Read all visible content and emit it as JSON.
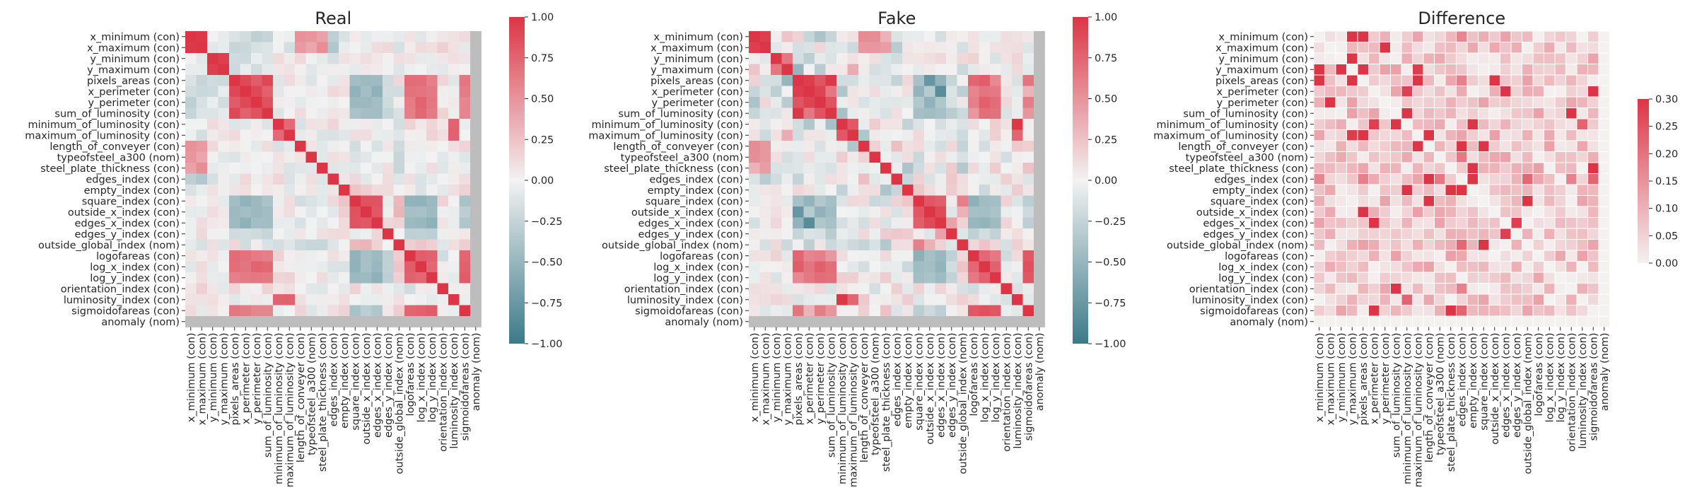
{
  "chart_data": [
    {
      "type": "heatmap",
      "title": "Real",
      "labels": [
        "x_minimum (con)",
        "x_maximum (con)",
        "y_minimum (con)",
        "y_maximum (con)",
        "pixels_areas (con)",
        "x_perimeter (con)",
        "y_perimeter (con)",
        "sum_of_luminosity (con)",
        "minimum_of_luminosity (con)",
        "maximum_of_luminosity (con)",
        "length_of_conveyer (con)",
        "typeofsteel_a300 (nom)",
        "steel_plate_thickness (con)",
        "edges_index (con)",
        "empty_index (con)",
        "square_index (con)",
        "outside_x_index (con)",
        "edges_x_index (con)",
        "edges_y_index (con)",
        "outside_global_index (nom)",
        "logofareas (con)",
        "log_x_index (con)",
        "log_y_index (con)",
        "orientation_index (con)",
        "luminosity_index (con)",
        "sigmoidofareas (con)",
        "anomaly (nom)"
      ],
      "colorbar": {
        "min": -1.0,
        "max": 1.0,
        "ticks": [
          "1.00",
          "0.75",
          "0.50",
          "0.25",
          "0.00",
          "−0.25",
          "−0.50",
          "−0.75",
          "−1.00"
        ]
      },
      "nan_label": "anomaly (nom)"
    },
    {
      "type": "heatmap",
      "title": "Fake",
      "labels": [
        "x_minimum (con)",
        "x_maximum (con)",
        "y_minimum (con)",
        "y_maximum (con)",
        "pixels_areas (con)",
        "x_perimeter (con)",
        "y_perimeter (con)",
        "sum_of_luminosity (con)",
        "minimum_of_luminosity (con)",
        "maximum_of_luminosity (con)",
        "length_of_conveyer (con)",
        "typeofsteel_a300 (nom)",
        "steel_plate_thickness (con)",
        "edges_index (con)",
        "empty_index (con)",
        "square_index (con)",
        "outside_x_index (con)",
        "edges_x_index (con)",
        "edges_y_index (con)",
        "outside_global_index (nom)",
        "logofareas (con)",
        "log_x_index (con)",
        "log_y_index (con)",
        "orientation_index (con)",
        "luminosity_index (con)",
        "sigmoidofareas (con)",
        "anomaly (nom)"
      ],
      "colorbar": {
        "min": -1.0,
        "max": 1.0,
        "ticks": [
          "1.00",
          "0.75",
          "0.50",
          "0.25",
          "0.00",
          "−0.25",
          "−0.50",
          "−0.75",
          "−1.00"
        ]
      },
      "nan_label": "anomaly (nom)"
    },
    {
      "type": "heatmap",
      "title": "Difference",
      "labels": [
        "x_minimum (con)",
        "x_maximum (con)",
        "y_minimum (con)",
        "y_maximum (con)",
        "pixels_areas (con)",
        "x_perimeter (con)",
        "y_perimeter (con)",
        "sum_of_luminosity (con)",
        "minimum_of_luminosity (con)",
        "maximum_of_luminosity (con)",
        "length_of_conveyer (con)",
        "typeofsteel_a300 (nom)",
        "steel_plate_thickness (con)",
        "edges_index (con)",
        "empty_index (con)",
        "square_index (con)",
        "outside_x_index (con)",
        "edges_x_index (con)",
        "edges_y_index (con)",
        "outside_global_index (nom)",
        "logofareas (con)",
        "log_x_index (con)",
        "log_y_index (con)",
        "orientation_index (con)",
        "luminosity_index (con)",
        "sigmoidofareas (con)",
        "anomaly (nom)"
      ],
      "colorbar": {
        "min": 0.0,
        "max": 0.3,
        "ticks": [
          "0.30",
          "0.25",
          "0.20",
          "0.15",
          "0.10",
          "0.05",
          "0.00"
        ]
      }
    }
  ],
  "colors": {
    "negative": "#3c7a89",
    "neutral": "#f2f2f2",
    "positive": "#dc3545",
    "nan": "#bdbdbd",
    "diff_low": "#f4f1f1",
    "diff_high": "#dc3545"
  }
}
